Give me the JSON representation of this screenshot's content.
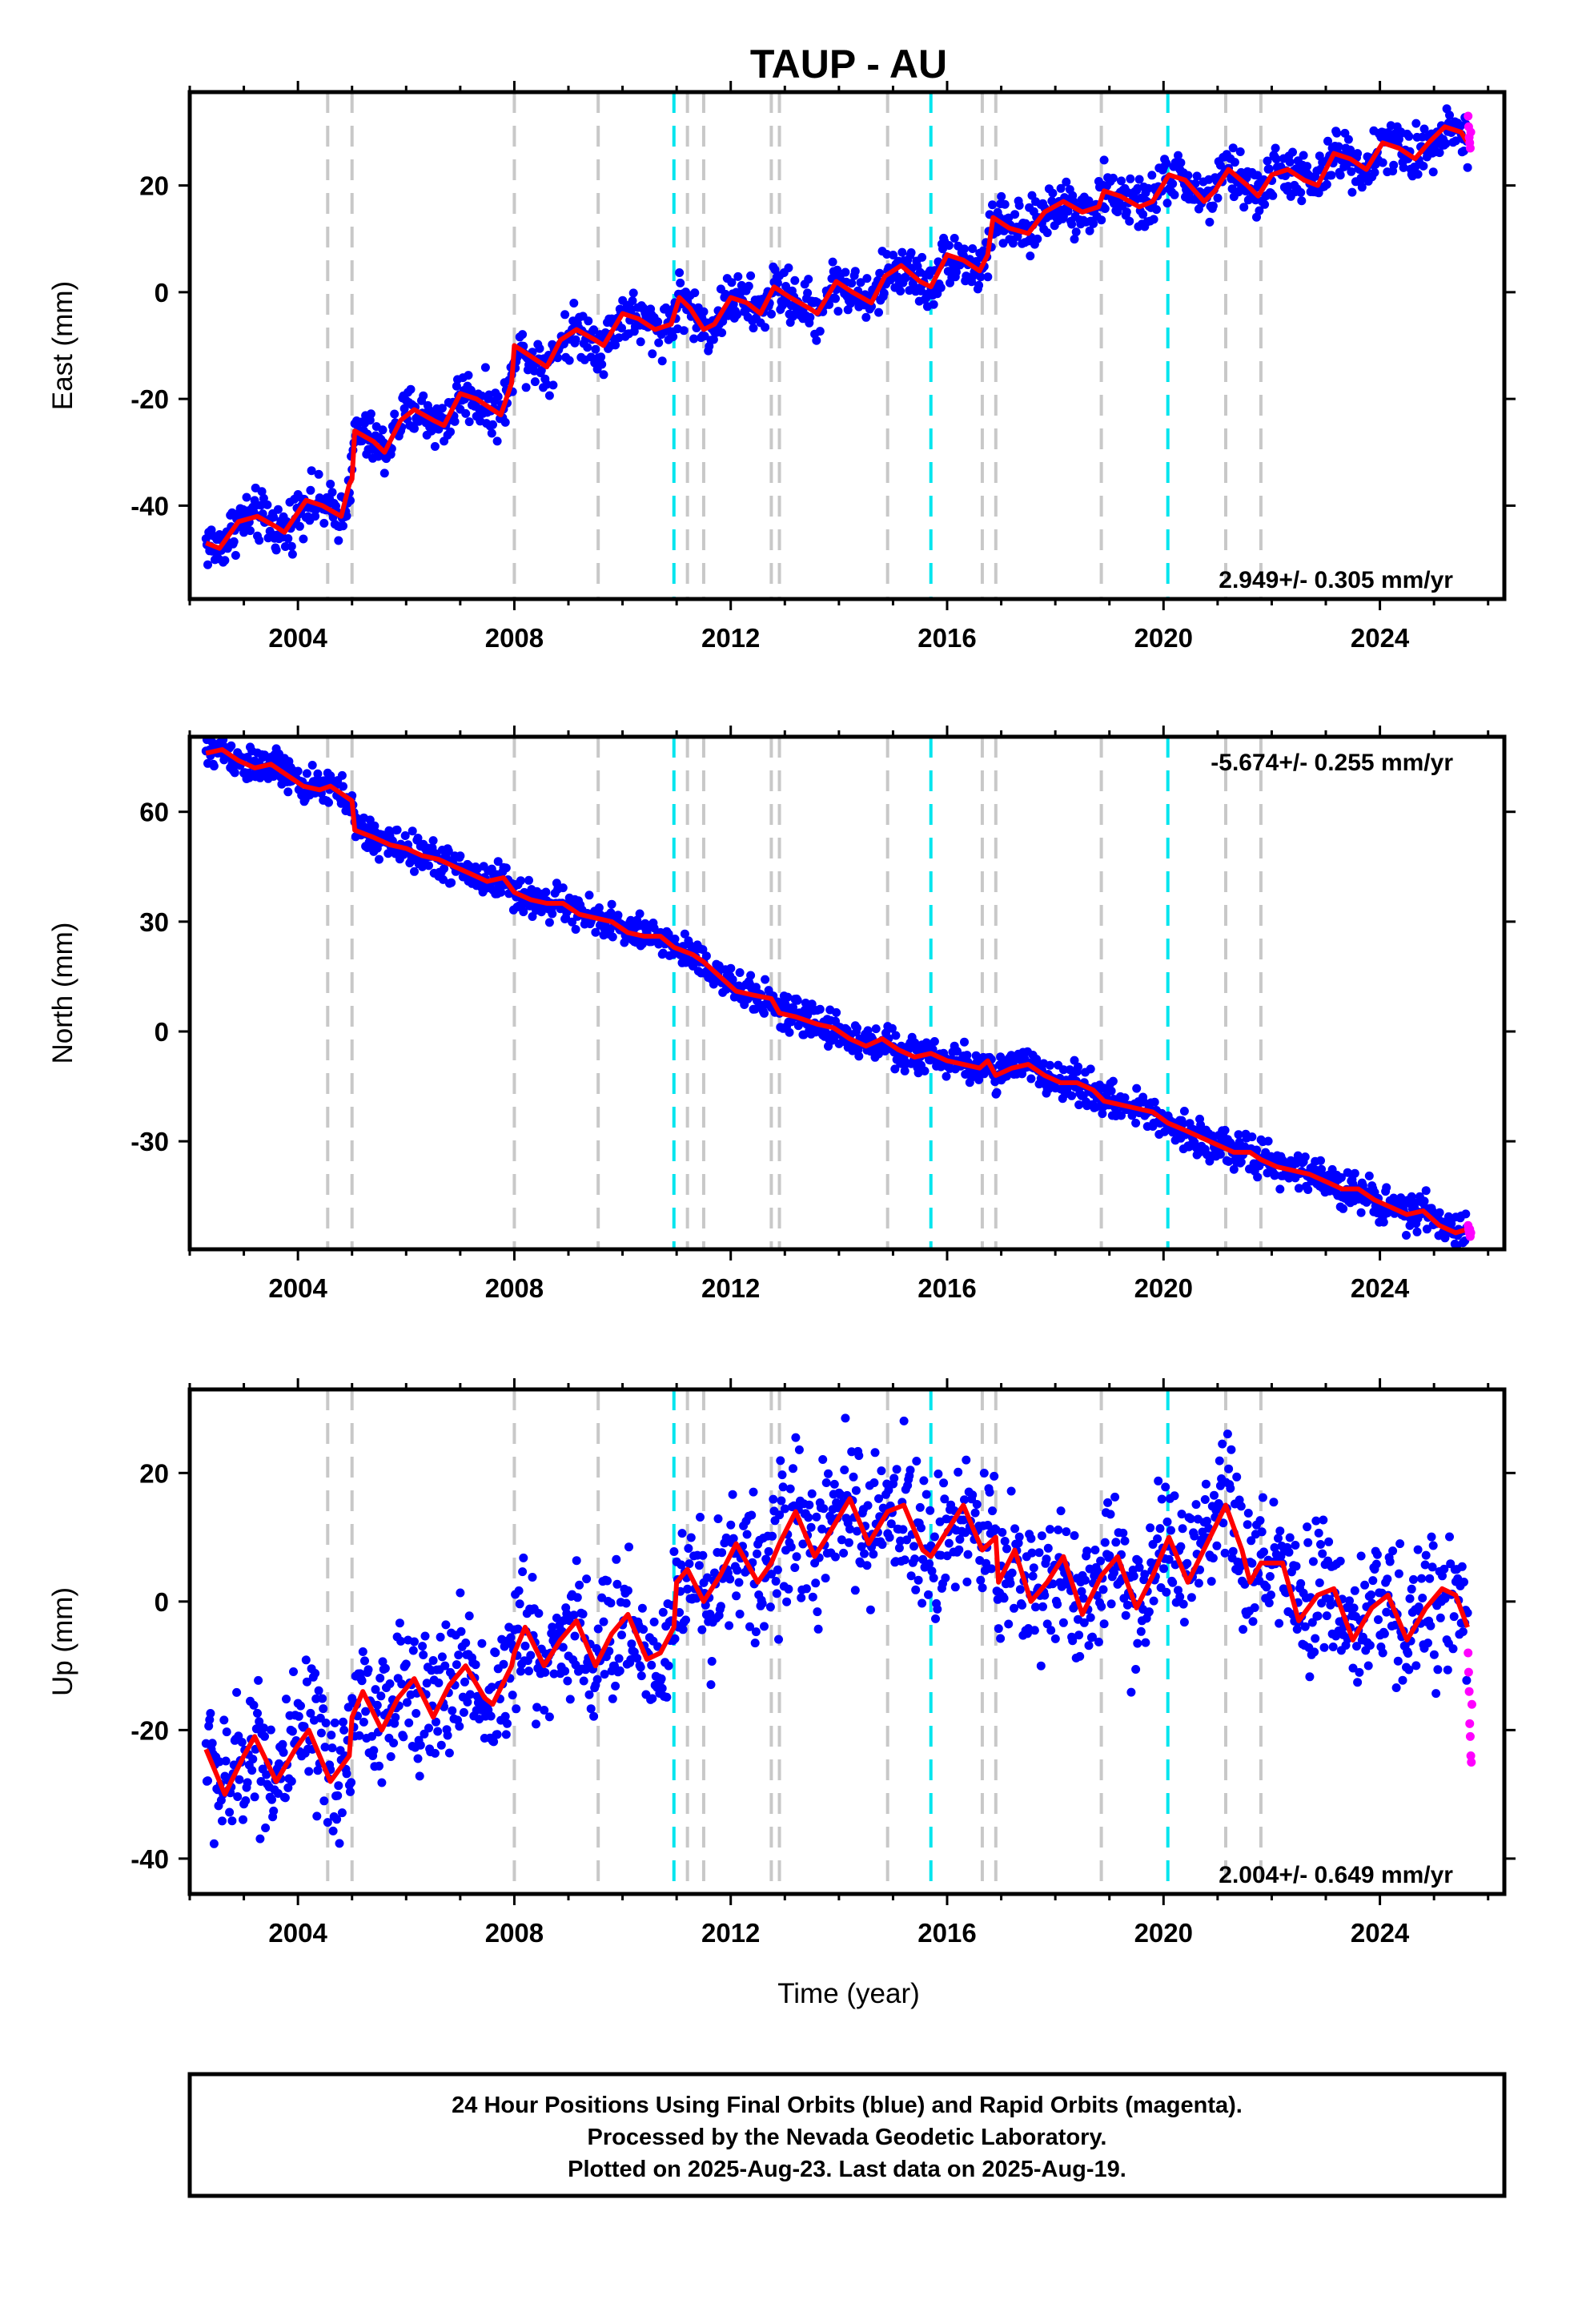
{
  "title": "TAUP - AU",
  "xlabel": "Time (year)",
  "footer": {
    "lines": [
      "24 Hour Positions Using Final Orbits (blue) and Rapid Orbits (magenta).",
      "Processed by the Nevada Geodetic Laboratory.",
      "Plotted on 2025-Aug-23. Last data on 2025-Aug-19."
    ]
  },
  "colors": {
    "final": "#0000ff",
    "rapid": "#ff00ff",
    "model": "#ff0000",
    "equipment_change": "#c8c8c8",
    "earthquake": "#00e5ee"
  },
  "chart_data": [
    {
      "type": "scatter",
      "ylabel": "East (mm)",
      "xlim": [
        2002.0,
        2026.3
      ],
      "ylim": [
        -57.5,
        37.5
      ],
      "x_ticks": [
        2004,
        2008,
        2012,
        2016,
        2020,
        2024
      ],
      "y_ticks": [
        -40,
        -20,
        0,
        20
      ],
      "rate": "2.949+/- 0.305 mm/yr",
      "rate_position": "bottom-right",
      "vertical_lines": {
        "gray": [
          2004.55,
          2005.0,
          2008.0,
          2009.55,
          2011.2,
          2011.5,
          2012.75,
          2012.9,
          2014.9,
          2016.65,
          2016.9,
          2018.85,
          2021.15,
          2021.8
        ],
        "cyan": [
          2010.95,
          2015.7,
          2020.08
        ]
      },
      "model": [
        [
          2002.3,
          -47
        ],
        [
          2002.55,
          -48
        ],
        [
          2002.9,
          -43
        ],
        [
          2003.25,
          -42
        ],
        [
          2003.6,
          -44
        ],
        [
          2003.75,
          -45
        ],
        [
          2004.15,
          -39
        ],
        [
          2004.45,
          -40
        ],
        [
          2004.8,
          -42
        ],
        [
          2004.95,
          -36
        ],
        [
          2005.0,
          -35
        ],
        [
          2005.05,
          -26
        ],
        [
          2005.4,
          -28
        ],
        [
          2005.6,
          -30
        ],
        [
          2005.9,
          -24
        ],
        [
          2006.15,
          -22
        ],
        [
          2006.5,
          -24
        ],
        [
          2006.7,
          -25
        ],
        [
          2007.0,
          -19
        ],
        [
          2007.3,
          -20
        ],
        [
          2007.6,
          -22
        ],
        [
          2007.75,
          -23
        ],
        [
          2007.95,
          -17
        ],
        [
          2008.0,
          -10
        ],
        [
          2008.3,
          -12
        ],
        [
          2008.6,
          -14
        ],
        [
          2008.85,
          -9
        ],
        [
          2009.15,
          -7
        ],
        [
          2009.5,
          -9
        ],
        [
          2009.65,
          -10
        ],
        [
          2010.0,
          -4
        ],
        [
          2010.3,
          -5
        ],
        [
          2010.6,
          -7
        ],
        [
          2010.9,
          -6
        ],
        [
          2011.05,
          -1
        ],
        [
          2011.25,
          -3
        ],
        [
          2011.5,
          -7
        ],
        [
          2011.7,
          -6
        ],
        [
          2012.0,
          -1
        ],
        [
          2012.3,
          -2
        ],
        [
          2012.55,
          -4
        ],
        [
          2012.8,
          1
        ],
        [
          2013.1,
          -1
        ],
        [
          2013.45,
          -3
        ],
        [
          2013.6,
          -4
        ],
        [
          2013.95,
          2
        ],
        [
          2014.25,
          0
        ],
        [
          2014.6,
          -2
        ],
        [
          2014.85,
          3
        ],
        [
          2015.15,
          5
        ],
        [
          2015.5,
          2
        ],
        [
          2015.7,
          1
        ],
        [
          2016.0,
          7
        ],
        [
          2016.3,
          6
        ],
        [
          2016.6,
          4
        ],
        [
          2016.75,
          7
        ],
        [
          2016.85,
          14
        ],
        [
          2017.15,
          12
        ],
        [
          2017.5,
          11
        ],
        [
          2017.8,
          15
        ],
        [
          2018.15,
          17
        ],
        [
          2018.5,
          15
        ],
        [
          2018.8,
          16
        ],
        [
          2018.9,
          19
        ],
        [
          2019.2,
          18
        ],
        [
          2019.55,
          16
        ],
        [
          2019.8,
          17
        ],
        [
          2020.1,
          22
        ],
        [
          2020.4,
          21
        ],
        [
          2020.75,
          17
        ],
        [
          2020.95,
          19
        ],
        [
          2021.2,
          23
        ],
        [
          2021.55,
          20
        ],
        [
          2021.75,
          18
        ],
        [
          2022.0,
          22
        ],
        [
          2022.3,
          23
        ],
        [
          2022.6,
          21
        ],
        [
          2022.85,
          20
        ],
        [
          2023.15,
          26
        ],
        [
          2023.45,
          25
        ],
        [
          2023.75,
          23
        ],
        [
          2024.05,
          28
        ],
        [
          2024.35,
          27
        ],
        [
          2024.65,
          25
        ],
        [
          2024.9,
          28
        ],
        [
          2025.2,
          31
        ],
        [
          2025.5,
          30
        ],
        [
          2025.62,
          28
        ]
      ],
      "rapid": [
        [
          2025.63,
          33
        ],
        [
          2025.64,
          31
        ],
        [
          2025.65,
          29
        ],
        [
          2025.66,
          28
        ],
        [
          2025.67,
          27
        ],
        [
          2025.68,
          30
        ]
      ]
    },
    {
      "type": "scatter",
      "ylabel": "North (mm)",
      "xlim": [
        2002.0,
        2026.3
      ],
      "ylim": [
        -59.5,
        80.5
      ],
      "x_ticks": [
        2004,
        2008,
        2012,
        2016,
        2020,
        2024
      ],
      "y_ticks": [
        -30,
        0,
        30,
        60
      ],
      "rate": "-5.674+/- 0.255 mm/yr",
      "rate_position": "top-right",
      "vertical_lines": {
        "gray": [
          2004.55,
          2005.0,
          2008.0,
          2009.55,
          2011.2,
          2011.5,
          2012.75,
          2012.9,
          2014.9,
          2016.65,
          2016.9,
          2018.85,
          2021.15,
          2021.8
        ],
        "cyan": [
          2010.95,
          2015.7,
          2020.08
        ]
      },
      "model": [
        [
          2002.3,
          76
        ],
        [
          2002.6,
          77
        ],
        [
          2002.9,
          74
        ],
        [
          2003.2,
          72
        ],
        [
          2003.5,
          73
        ],
        [
          2003.8,
          70
        ],
        [
          2004.1,
          67
        ],
        [
          2004.4,
          66
        ],
        [
          2004.6,
          67
        ],
        [
          2005.0,
          63
        ],
        [
          2005.05,
          55
        ],
        [
          2005.4,
          53
        ],
        [
          2005.7,
          51
        ],
        [
          2006.0,
          50
        ],
        [
          2006.3,
          48
        ],
        [
          2006.6,
          47
        ],
        [
          2006.9,
          45
        ],
        [
          2007.2,
          43
        ],
        [
          2007.5,
          41
        ],
        [
          2007.8,
          42
        ],
        [
          2008.0,
          38
        ],
        [
          2008.3,
          36
        ],
        [
          2008.6,
          35
        ],
        [
          2008.9,
          35
        ],
        [
          2009.2,
          32
        ],
        [
          2009.5,
          31
        ],
        [
          2009.8,
          30
        ],
        [
          2010.1,
          27
        ],
        [
          2010.4,
          26
        ],
        [
          2010.7,
          26
        ],
        [
          2010.95,
          23
        ],
        [
          2011.3,
          21
        ],
        [
          2011.5,
          19
        ],
        [
          2011.8,
          15
        ],
        [
          2012.1,
          11
        ],
        [
          2012.4,
          10
        ],
        [
          2012.75,
          9
        ],
        [
          2012.9,
          5
        ],
        [
          2013.2,
          4
        ],
        [
          2013.6,
          2
        ],
        [
          2013.9,
          1
        ],
        [
          2014.2,
          -2
        ],
        [
          2014.5,
          -4
        ],
        [
          2014.8,
          -2
        ],
        [
          2015.1,
          -5
        ],
        [
          2015.4,
          -7
        ],
        [
          2015.7,
          -6
        ],
        [
          2016.0,
          -8
        ],
        [
          2016.3,
          -9
        ],
        [
          2016.6,
          -10
        ],
        [
          2016.75,
          -8
        ],
        [
          2016.9,
          -12
        ],
        [
          2017.2,
          -10
        ],
        [
          2017.5,
          -9
        ],
        [
          2017.8,
          -12
        ],
        [
          2018.1,
          -14
        ],
        [
          2018.4,
          -14
        ],
        [
          2018.7,
          -16
        ],
        [
          2018.9,
          -19
        ],
        [
          2019.2,
          -20
        ],
        [
          2019.5,
          -21
        ],
        [
          2019.8,
          -22
        ],
        [
          2020.08,
          -25
        ],
        [
          2020.4,
          -27
        ],
        [
          2020.7,
          -29
        ],
        [
          2021.0,
          -31
        ],
        [
          2021.3,
          -33
        ],
        [
          2021.6,
          -33
        ],
        [
          2021.8,
          -35
        ],
        [
          2022.1,
          -37
        ],
        [
          2022.4,
          -38
        ],
        [
          2022.7,
          -39
        ],
        [
          2023.0,
          -41
        ],
        [
          2023.3,
          -43
        ],
        [
          2023.6,
          -43
        ],
        [
          2023.9,
          -46
        ],
        [
          2024.2,
          -48
        ],
        [
          2024.5,
          -50
        ],
        [
          2024.8,
          -49
        ],
        [
          2025.1,
          -53
        ],
        [
          2025.4,
          -55
        ],
        [
          2025.62,
          -54
        ]
      ],
      "rapid": [
        [
          2025.63,
          -53
        ],
        [
          2025.64,
          -54
        ],
        [
          2025.65,
          -55
        ],
        [
          2025.66,
          -54
        ],
        [
          2025.67,
          -56
        ],
        [
          2025.68,
          -55
        ]
      ]
    },
    {
      "type": "scatter",
      "ylabel": "Up (mm)",
      "xlim": [
        2002.0,
        2026.3
      ],
      "ylim": [
        -45.5,
        33.0
      ],
      "x_ticks": [
        2004,
        2008,
        2012,
        2016,
        2020,
        2024
      ],
      "y_ticks": [
        -40,
        -20,
        0,
        20
      ],
      "rate": "2.004+/- 0.649 mm/yr",
      "rate_position": "bottom-right",
      "vertical_lines": {
        "gray": [
          2004.55,
          2005.0,
          2008.0,
          2009.55,
          2011.2,
          2011.5,
          2012.75,
          2012.9,
          2014.9,
          2016.65,
          2016.9,
          2018.85,
          2021.15,
          2021.8
        ],
        "cyan": [
          2010.95,
          2015.7,
          2020.08
        ]
      },
      "model": [
        [
          2002.3,
          -23
        ],
        [
          2002.65,
          -30
        ],
        [
          2003.0,
          -24
        ],
        [
          2003.2,
          -21
        ],
        [
          2003.6,
          -28
        ],
        [
          2003.95,
          -23
        ],
        [
          2004.2,
          -20
        ],
        [
          2004.55,
          -27
        ],
        [
          2004.6,
          -28
        ],
        [
          2004.95,
          -24
        ],
        [
          2005.0,
          -18
        ],
        [
          2005.2,
          -14
        ],
        [
          2005.55,
          -20
        ],
        [
          2005.85,
          -15
        ],
        [
          2006.15,
          -12
        ],
        [
          2006.5,
          -18
        ],
        [
          2006.8,
          -13
        ],
        [
          2007.1,
          -10
        ],
        [
          2007.45,
          -15
        ],
        [
          2007.6,
          -16
        ],
        [
          2007.95,
          -10
        ],
        [
          2008.0,
          -8
        ],
        [
          2008.2,
          -4
        ],
        [
          2008.55,
          -10
        ],
        [
          2008.85,
          -6
        ],
        [
          2009.15,
          -3
        ],
        [
          2009.5,
          -10
        ],
        [
          2009.8,
          -5
        ],
        [
          2010.1,
          -2
        ],
        [
          2010.45,
          -9
        ],
        [
          2010.7,
          -8
        ],
        [
          2010.95,
          -4
        ],
        [
          2011.0,
          3
        ],
        [
          2011.2,
          5
        ],
        [
          2011.5,
          0
        ],
        [
          2011.8,
          4
        ],
        [
          2012.1,
          9
        ],
        [
          2012.5,
          3
        ],
        [
          2012.75,
          6
        ],
        [
          2012.9,
          9
        ],
        [
          2013.2,
          14
        ],
        [
          2013.55,
          7
        ],
        [
          2013.85,
          11
        ],
        [
          2014.2,
          16
        ],
        [
          2014.55,
          9
        ],
        [
          2014.9,
          14
        ],
        [
          2015.2,
          15
        ],
        [
          2015.55,
          8
        ],
        [
          2015.7,
          7
        ],
        [
          2016.0,
          11
        ],
        [
          2016.3,
          15
        ],
        [
          2016.65,
          8
        ],
        [
          2016.9,
          10
        ],
        [
          2016.95,
          3
        ],
        [
          2017.25,
          8
        ],
        [
          2017.55,
          0
        ],
        [
          2017.85,
          3
        ],
        [
          2018.15,
          7
        ],
        [
          2018.5,
          -2
        ],
        [
          2018.85,
          4
        ],
        [
          2019.15,
          7
        ],
        [
          2019.5,
          -1
        ],
        [
          2019.8,
          4
        ],
        [
          2020.1,
          10
        ],
        [
          2020.45,
          3
        ],
        [
          2020.8,
          9
        ],
        [
          2021.15,
          15
        ],
        [
          2021.45,
          8
        ],
        [
          2021.6,
          3
        ],
        [
          2021.8,
          6
        ],
        [
          2022.2,
          6
        ],
        [
          2022.5,
          -3
        ],
        [
          2022.85,
          1
        ],
        [
          2023.15,
          2
        ],
        [
          2023.5,
          -6
        ],
        [
          2023.85,
          -1
        ],
        [
          2024.15,
          1
        ],
        [
          2024.5,
          -6
        ],
        [
          2024.85,
          -1
        ],
        [
          2025.15,
          2
        ],
        [
          2025.4,
          1
        ],
        [
          2025.62,
          -4
        ]
      ],
      "rapid": [
        [
          2025.63,
          -8
        ],
        [
          2025.64,
          -11
        ],
        [
          2025.65,
          -14
        ],
        [
          2025.66,
          -19
        ],
        [
          2025.67,
          -21
        ],
        [
          2025.68,
          -24
        ],
        [
          2025.69,
          -25
        ],
        [
          2025.7,
          -16
        ]
      ]
    }
  ]
}
